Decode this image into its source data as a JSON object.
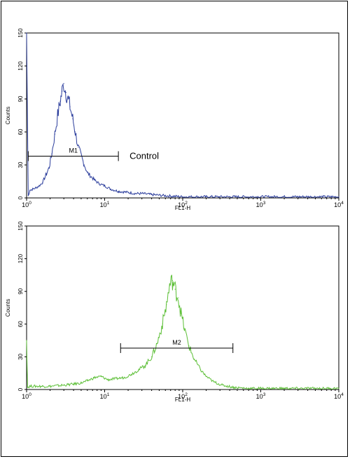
{
  "chart_data": [
    {
      "type": "line",
      "panel": "top",
      "xlabel": "FL1-H",
      "ylabel": "Counts",
      "x_scale": "log",
      "xlim": [
        1,
        10000
      ],
      "ylim": [
        0,
        150
      ],
      "x_ticks": [
        {
          "value": 1,
          "base": "10",
          "exp": "0"
        },
        {
          "value": 10,
          "base": "10",
          "exp": "1"
        },
        {
          "value": 100,
          "base": "10",
          "exp": "2"
        },
        {
          "value": 1000,
          "base": "10",
          "exp": "3"
        },
        {
          "value": 10000,
          "base": "10",
          "exp": "4"
        }
      ],
      "y_ticks": [
        "0",
        "30",
        "60",
        "90",
        "120",
        "150"
      ],
      "color": "#2b3d9c",
      "series": [
        {
          "x": [
            1.0,
            1.05,
            1.1,
            1.2,
            1.3,
            1.45,
            1.6,
            1.8,
            1.95,
            2.1,
            2.3,
            2.5,
            2.7,
            2.85,
            3.0,
            3.2,
            3.4,
            3.6,
            3.9,
            4.2,
            4.6,
            5.0,
            5.5,
            6.0,
            6.8,
            7.5,
            8.5,
            10,
            12,
            15,
            20,
            25,
            30,
            40,
            60,
            100,
            200,
            400,
            1000,
            3000,
            10000
          ],
          "y": [
            150,
            2,
            7,
            8,
            9,
            11,
            14,
            22,
            28,
            40,
            58,
            75,
            88,
            97,
            104,
            96,
            90,
            83,
            72,
            60,
            46,
            38,
            30,
            23,
            19,
            16,
            13,
            11,
            8,
            6,
            5,
            4,
            4,
            3,
            2,
            1,
            1,
            1,
            1,
            1,
            1
          ]
        }
      ],
      "markers": [
        {
          "label": "M1",
          "from": 1.05,
          "to": 15
        }
      ],
      "annotation": "Control"
    },
    {
      "type": "line",
      "panel": "bottom",
      "xlabel": "FL1-H",
      "ylabel": "Counts",
      "x_scale": "log",
      "xlim": [
        1,
        10000
      ],
      "ylim": [
        0,
        150
      ],
      "x_ticks": [
        {
          "value": 1,
          "base": "10",
          "exp": "0"
        },
        {
          "value": 10,
          "base": "10",
          "exp": "1"
        },
        {
          "value": 100,
          "base": "10",
          "exp": "2"
        },
        {
          "value": 1000,
          "base": "10",
          "exp": "3"
        },
        {
          "value": 10000,
          "base": "10",
          "exp": "4"
        }
      ],
      "y_ticks": [
        "0",
        "30",
        "60",
        "90",
        "120",
        "150"
      ],
      "color": "#5cbf36",
      "series": [
        {
          "x": [
            1.0,
            1.03,
            1.1,
            1.3,
            1.6,
            2.0,
            3.0,
            4.0,
            5.0,
            6.0,
            7.5,
            9.0,
            11,
            14,
            18,
            22,
            27,
            33,
            40,
            47,
            55,
            62,
            68,
            74,
            80,
            88,
            95,
            105,
            120,
            140,
            170,
            200,
            250,
            320,
            450,
            700,
            1000,
            2000,
            5000,
            10000
          ],
          "y": [
            45,
            2,
            3,
            3,
            3,
            3,
            4,
            5,
            6,
            8,
            11,
            12,
            9,
            10,
            11,
            14,
            18,
            22,
            30,
            42,
            60,
            78,
            95,
            100,
            92,
            84,
            70,
            56,
            40,
            28,
            18,
            12,
            7,
            4,
            2,
            1,
            1,
            1,
            1,
            1
          ]
        }
      ],
      "markers": [
        {
          "label": "M2",
          "from": 16,
          "to": 440
        }
      ]
    }
  ]
}
